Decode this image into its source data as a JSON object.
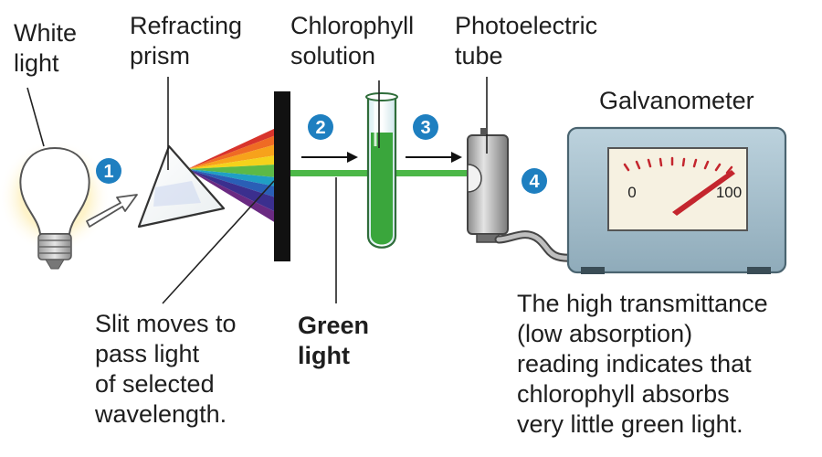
{
  "labels": {
    "white_light": "White\nlight",
    "prism": "Refracting\nprism",
    "chlorophyll": "Chlorophyll\nsolution",
    "photoelectric": "Photoelectric\ntube",
    "galvanometer": "Galvanometer",
    "slit": "Slit moves to\npass light\nof selected\nwavelength.",
    "green_light": "Green\nlight",
    "reading": "The high transmittance\n(low absorption)\nreading indicates that\nchlorophyll absorbs\nvery little green light."
  },
  "steps": [
    "1",
    "2",
    "3",
    "4"
  ],
  "meter": {
    "scale_min": "0",
    "scale_max": "100",
    "reading_percent": 95
  },
  "colors": {
    "step_badge": "#1e7fc0",
    "green_beam": "#4cb848",
    "chlorophyll": "#3aa63c",
    "device_body": "#a9c2cf",
    "meter_needle": "#c4262e",
    "slit": "#111111"
  }
}
